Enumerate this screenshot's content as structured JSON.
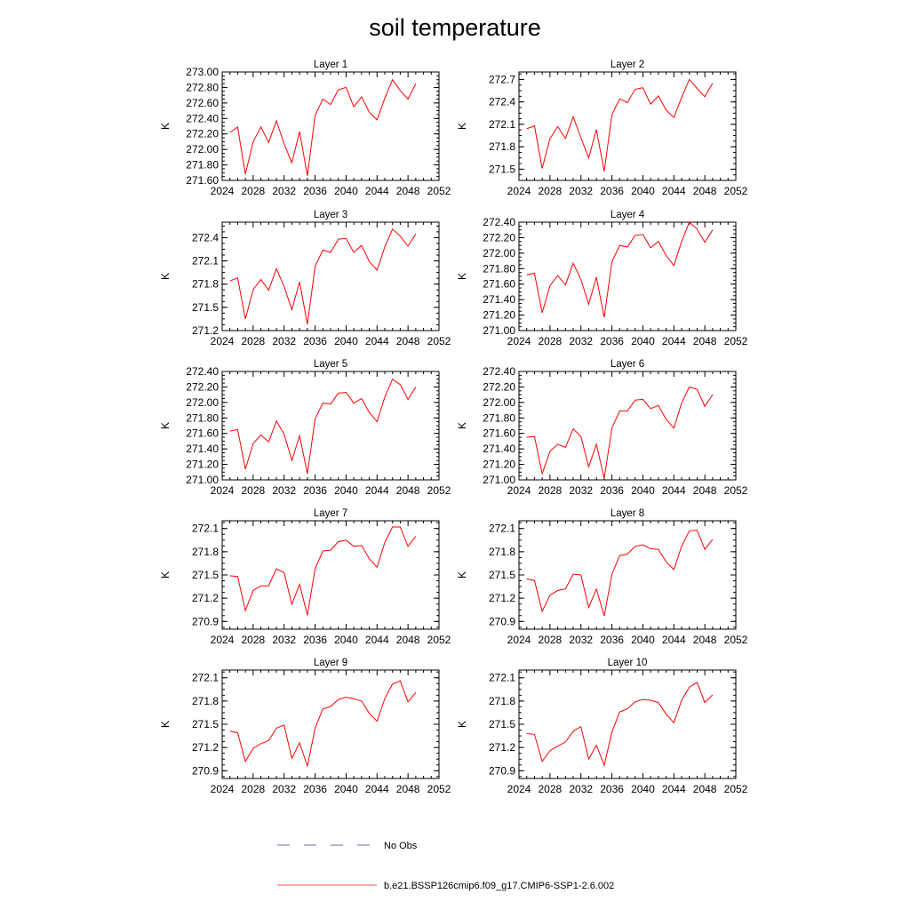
{
  "title": "soil temperature",
  "legend": [
    {
      "label": "No Obs",
      "color": "#6a6aaa",
      "dash": true
    },
    {
      "label": "b.e21.BSSP126cmip6.f09_g17.CMIP6-SSP1-2.6.002",
      "color": "#ff5555",
      "dash": false
    }
  ],
  "chart_data": [
    {
      "type": "line",
      "title": "Layer 1",
      "ylabel": "K",
      "xlim": [
        2024,
        2052
      ],
      "xticks": [
        "2024",
        "2028",
        "2032",
        "2036",
        "2040",
        "2044",
        "2048",
        "2052"
      ],
      "ylim": [
        271.6,
        273.0
      ],
      "yticks": [
        "271.60",
        "271.80",
        "272.00",
        "272.20",
        "272.40",
        "272.60",
        "272.80",
        "273.00"
      ],
      "x": [
        2025,
        2026,
        2027,
        2028,
        2029,
        2030,
        2031,
        2032,
        2033,
        2034,
        2035,
        2036,
        2037,
        2038,
        2039,
        2040,
        2041,
        2042,
        2043,
        2044,
        2045,
        2046,
        2047,
        2048,
        2049
      ],
      "series": [
        {
          "name": "b.e21.BSSP126cmip6.f09_g17.CMIP6-SSP1-2.6.002",
          "color": "#ff0000",
          "values": [
            272.22,
            272.29,
            271.68,
            272.1,
            272.29,
            272.09,
            272.37,
            272.07,
            271.83,
            272.23,
            271.66,
            272.44,
            272.65,
            272.58,
            272.77,
            272.8,
            272.55,
            272.68,
            272.48,
            272.38,
            272.66,
            272.9,
            272.76,
            272.65,
            272.85
          ]
        }
      ]
    },
    {
      "type": "line",
      "title": "Layer 2",
      "ylabel": "K",
      "xlim": [
        2024,
        2052
      ],
      "xticks": [
        "2024",
        "2028",
        "2032",
        "2036",
        "2040",
        "2044",
        "2048",
        "2052"
      ],
      "ylim": [
        271.35,
        272.8
      ],
      "yticks": [
        "271.5",
        "271.8",
        "272.1",
        "272.4",
        "272.7"
      ],
      "x": [
        2025,
        2026,
        2027,
        2028,
        2029,
        2030,
        2031,
        2032,
        2033,
        2034,
        2035,
        2036,
        2037,
        2038,
        2039,
        2040,
        2041,
        2042,
        2043,
        2044,
        2045,
        2046,
        2047,
        2048,
        2049
      ],
      "series": [
        {
          "name": "b.e21.BSSP126cmip6.f09_g17.CMIP6-SSP1-2.6.002",
          "color": "#ff0000",
          "values": [
            272.04,
            272.08,
            271.51,
            271.91,
            272.07,
            271.91,
            272.2,
            271.92,
            271.65,
            272.03,
            271.47,
            272.23,
            272.44,
            272.39,
            272.57,
            272.59,
            272.37,
            272.48,
            272.29,
            272.19,
            272.46,
            272.7,
            272.58,
            272.47,
            272.65
          ]
        }
      ]
    },
    {
      "type": "line",
      "title": "Layer 3",
      "ylabel": "K",
      "xlim": [
        2024,
        2052
      ],
      "xticks": [
        "2024",
        "2028",
        "2032",
        "2036",
        "2040",
        "2044",
        "2048",
        "2052"
      ],
      "ylim": [
        271.2,
        272.6
      ],
      "yticks": [
        "271.2",
        "271.5",
        "271.8",
        "272.1",
        "272.4"
      ],
      "x": [
        2025,
        2026,
        2027,
        2028,
        2029,
        2030,
        2031,
        2032,
        2033,
        2034,
        2035,
        2036,
        2037,
        2038,
        2039,
        2040,
        2041,
        2042,
        2043,
        2044,
        2045,
        2046,
        2047,
        2048,
        2049
      ],
      "series": [
        {
          "name": "b.e21.BSSP126cmip6.f09_g17.CMIP6-SSP1-2.6.002",
          "color": "#ff0000",
          "values": [
            271.84,
            271.88,
            271.35,
            271.73,
            271.86,
            271.72,
            272.0,
            271.77,
            271.47,
            271.83,
            271.28,
            272.03,
            272.24,
            272.21,
            272.38,
            272.39,
            272.21,
            272.3,
            272.09,
            271.98,
            272.28,
            272.51,
            272.42,
            272.29,
            272.45
          ]
        }
      ]
    },
    {
      "type": "line",
      "title": "Layer 4",
      "ylabel": "K",
      "xlim": [
        2024,
        2052
      ],
      "xticks": [
        "2024",
        "2028",
        "2032",
        "2036",
        "2040",
        "2044",
        "2048",
        "2052"
      ],
      "ylim": [
        271.0,
        272.4
      ],
      "yticks": [
        "271.00",
        "271.20",
        "271.40",
        "271.60",
        "271.80",
        "272.00",
        "272.20",
        "272.40"
      ],
      "x": [
        2025,
        2026,
        2027,
        2028,
        2029,
        2030,
        2031,
        2032,
        2033,
        2034,
        2035,
        2036,
        2037,
        2038,
        2039,
        2040,
        2041,
        2042,
        2043,
        2044,
        2045,
        2046,
        2047,
        2048,
        2049
      ],
      "series": [
        {
          "name": "b.e21.BSSP126cmip6.f09_g17.CMIP6-SSP1-2.6.002",
          "color": "#ff0000",
          "values": [
            271.72,
            271.74,
            271.23,
            271.58,
            271.71,
            271.59,
            271.87,
            271.66,
            271.34,
            271.69,
            271.17,
            271.89,
            272.1,
            272.08,
            272.23,
            272.24,
            272.07,
            272.15,
            271.97,
            271.84,
            272.15,
            272.4,
            272.31,
            272.14,
            272.3
          ]
        }
      ]
    },
    {
      "type": "line",
      "title": "Layer 5",
      "ylabel": "K",
      "xlim": [
        2024,
        2052
      ],
      "xticks": [
        "2024",
        "2028",
        "2032",
        "2036",
        "2040",
        "2044",
        "2048",
        "2052"
      ],
      "ylim": [
        271.0,
        272.4
      ],
      "yticks": [
        "271.00",
        "271.20",
        "271.40",
        "271.60",
        "271.80",
        "272.00",
        "272.20",
        "272.40"
      ],
      "x": [
        2025,
        2026,
        2027,
        2028,
        2029,
        2030,
        2031,
        2032,
        2033,
        2034,
        2035,
        2036,
        2037,
        2038,
        2039,
        2040,
        2041,
        2042,
        2043,
        2044,
        2045,
        2046,
        2047,
        2048,
        2049
      ],
      "series": [
        {
          "name": "b.e21.BSSP126cmip6.f09_g17.CMIP6-SSP1-2.6.002",
          "color": "#ff0000",
          "values": [
            271.63,
            271.65,
            271.14,
            271.47,
            271.58,
            271.49,
            271.76,
            271.59,
            271.25,
            271.57,
            271.08,
            271.79,
            271.99,
            271.98,
            272.12,
            272.13,
            271.99,
            272.05,
            271.87,
            271.75,
            272.07,
            272.3,
            272.23,
            272.04,
            272.2
          ]
        }
      ]
    },
    {
      "type": "line",
      "title": "Layer 6",
      "ylabel": "K",
      "xlim": [
        2024,
        2052
      ],
      "xticks": [
        "2024",
        "2028",
        "2032",
        "2036",
        "2040",
        "2044",
        "2048",
        "2052"
      ],
      "ylim": [
        271.0,
        272.4
      ],
      "yticks": [
        "271.00",
        "271.20",
        "271.40",
        "271.60",
        "271.80",
        "272.00",
        "272.20",
        "272.40"
      ],
      "x": [
        2025,
        2026,
        2027,
        2028,
        2029,
        2030,
        2031,
        2032,
        2033,
        2034,
        2035,
        2036,
        2037,
        2038,
        2039,
        2040,
        2041,
        2042,
        2043,
        2044,
        2045,
        2046,
        2047,
        2048,
        2049
      ],
      "series": [
        {
          "name": "b.e21.BSSP126cmip6.f09_g17.CMIP6-SSP1-2.6.002",
          "color": "#ff0000",
          "values": [
            271.55,
            271.56,
            271.08,
            271.37,
            271.46,
            271.42,
            271.66,
            271.56,
            271.17,
            271.46,
            271.02,
            271.67,
            271.89,
            271.89,
            272.03,
            272.04,
            271.92,
            271.96,
            271.78,
            271.67,
            271.99,
            272.2,
            272.17,
            271.95,
            272.1
          ]
        }
      ]
    },
    {
      "type": "line",
      "title": "Layer 7",
      "ylabel": "K",
      "xlim": [
        2024,
        2052
      ],
      "xticks": [
        "2024",
        "2028",
        "2032",
        "2036",
        "2040",
        "2044",
        "2048",
        "2052"
      ],
      "ylim": [
        270.8,
        272.2
      ],
      "yticks": [
        "270.9",
        "271.2",
        "271.5",
        "271.8",
        "272.1"
      ],
      "x": [
        2025,
        2026,
        2027,
        2028,
        2029,
        2030,
        2031,
        2032,
        2033,
        2034,
        2035,
        2036,
        2037,
        2038,
        2039,
        2040,
        2041,
        2042,
        2043,
        2044,
        2045,
        2046,
        2047,
        2048,
        2049
      ],
      "series": [
        {
          "name": "b.e21.BSSP126cmip6.f09_g17.CMIP6-SSP1-2.6.002",
          "color": "#ff0000",
          "values": [
            271.49,
            271.48,
            271.04,
            271.3,
            271.36,
            271.36,
            271.58,
            271.53,
            271.12,
            271.38,
            270.98,
            271.58,
            271.81,
            271.82,
            271.93,
            271.95,
            271.87,
            271.88,
            271.71,
            271.6,
            271.92,
            272.12,
            272.12,
            271.87,
            272.0
          ]
        }
      ]
    },
    {
      "type": "line",
      "title": "Layer 8",
      "ylabel": "K",
      "xlim": [
        2024,
        2052
      ],
      "xticks": [
        "2024",
        "2028",
        "2032",
        "2036",
        "2040",
        "2044",
        "2048",
        "2052"
      ],
      "ylim": [
        270.8,
        272.2
      ],
      "yticks": [
        "270.9",
        "271.2",
        "271.5",
        "271.8",
        "272.1"
      ],
      "x": [
        2025,
        2026,
        2027,
        2028,
        2029,
        2030,
        2031,
        2032,
        2033,
        2034,
        2035,
        2036,
        2037,
        2038,
        2039,
        2040,
        2041,
        2042,
        2043,
        2044,
        2045,
        2046,
        2047,
        2048,
        2049
      ],
      "series": [
        {
          "name": "b.e21.BSSP126cmip6.f09_g17.CMIP6-SSP1-2.6.002",
          "color": "#ff0000",
          "values": [
            271.45,
            271.43,
            271.03,
            271.24,
            271.3,
            271.32,
            271.51,
            271.5,
            271.08,
            271.32,
            270.97,
            271.51,
            271.75,
            271.77,
            271.87,
            271.89,
            271.84,
            271.83,
            271.67,
            271.57,
            271.87,
            272.07,
            272.08,
            271.83,
            271.96
          ]
        }
      ]
    },
    {
      "type": "line",
      "title": "Layer 9",
      "ylabel": "K",
      "xlim": [
        2024,
        2052
      ],
      "xticks": [
        "2024",
        "2028",
        "2032",
        "2036",
        "2040",
        "2044",
        "2048",
        "2052"
      ],
      "ylim": [
        270.8,
        272.2
      ],
      "yticks": [
        "270.9",
        "271.2",
        "271.5",
        "271.8",
        "272.1"
      ],
      "x": [
        2025,
        2026,
        2027,
        2028,
        2029,
        2030,
        2031,
        2032,
        2033,
        2034,
        2035,
        2036,
        2037,
        2038,
        2039,
        2040,
        2041,
        2042,
        2043,
        2044,
        2045,
        2046,
        2047,
        2048,
        2049
      ],
      "series": [
        {
          "name": "b.e21.BSSP126cmip6.f09_g17.CMIP6-SSP1-2.6.002",
          "color": "#ff0000",
          "values": [
            271.41,
            271.39,
            271.02,
            271.19,
            271.25,
            271.29,
            271.45,
            271.49,
            271.06,
            271.26,
            270.96,
            271.45,
            271.7,
            271.73,
            271.82,
            271.85,
            271.83,
            271.8,
            271.64,
            271.54,
            271.83,
            272.02,
            272.06,
            271.79,
            271.91
          ]
        }
      ]
    },
    {
      "type": "line",
      "title": "Layer 10",
      "ylabel": "K",
      "xlim": [
        2024,
        2052
      ],
      "xticks": [
        "2024",
        "2028",
        "2032",
        "2036",
        "2040",
        "2044",
        "2048",
        "2052"
      ],
      "ylim": [
        270.8,
        272.2
      ],
      "yticks": [
        "270.9",
        "271.2",
        "271.5",
        "271.8",
        "272.1"
      ],
      "x": [
        2025,
        2026,
        2027,
        2028,
        2029,
        2030,
        2031,
        2032,
        2033,
        2034,
        2035,
        2036,
        2037,
        2038,
        2039,
        2040,
        2041,
        2042,
        2043,
        2044,
        2045,
        2046,
        2047,
        2048,
        2049
      ],
      "series": [
        {
          "name": "b.e21.BSSP126cmip6.f09_g17.CMIP6-SSP1-2.6.002",
          "color": "#ff0000",
          "values": [
            271.38,
            271.37,
            271.02,
            271.16,
            271.22,
            271.27,
            271.41,
            271.47,
            271.05,
            271.23,
            270.97,
            271.4,
            271.66,
            271.7,
            271.79,
            271.82,
            271.81,
            271.78,
            271.63,
            271.52,
            271.81,
            271.98,
            272.04,
            271.78,
            271.88
          ]
        }
      ]
    }
  ]
}
